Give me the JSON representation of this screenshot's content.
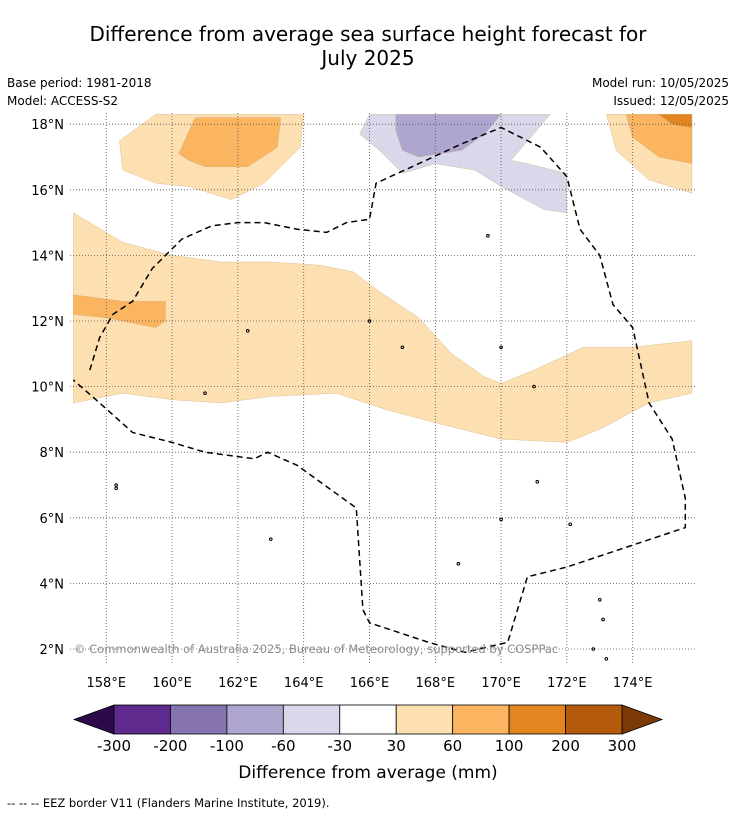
{
  "header": {
    "title_line1": "Difference from average sea surface height forecast for",
    "title_line2": "July 2025",
    "base_period": "Base period: 1981-2018",
    "model": "Model: ACCESS-S2",
    "model_run": "Model run: 10/05/2025",
    "issued": "Issued: 12/05/2025"
  },
  "footer": {
    "eez_note": "--  --  -- EEZ border V11 (Flanders Marine Institute, 2019)."
  },
  "copyright": "© Commonwealth of Australia 2025, Bureau of Meteorology, supported by COSPPac",
  "colors": {
    "c_m300_m200": "#5e2a8e",
    "c_m200_m100": "#8574b0",
    "c_m100_m60": "#afa6d0",
    "c_m60_m30": "#d9d8ea",
    "c_m30_30": "#ffffff",
    "c_30_60": "#fde0b2",
    "c_60_100": "#fbb45f",
    "c_100_200": "#e3861f",
    "c_200_300": "#b45a0c",
    "over": "#7b3908",
    "under": "#2d0a4b",
    "grid": "#555555",
    "eez": "#000000"
  },
  "chart_data": {
    "type": "heatmap",
    "title": "Difference from average sea surface height forecast for July 2025",
    "xlabel": "",
    "ylabel": "",
    "xlim": [
      157.0,
      175.8
    ],
    "ylim": [
      1.3,
      18.3
    ],
    "x_ticks": [
      {
        "value": 158,
        "label": "158°E"
      },
      {
        "value": 160,
        "label": "160°E"
      },
      {
        "value": 162,
        "label": "162°E"
      },
      {
        "value": 164,
        "label": "164°E"
      },
      {
        "value": 166,
        "label": "166°E"
      },
      {
        "value": 168,
        "label": "168°E"
      },
      {
        "value": 170,
        "label": "170°E"
      },
      {
        "value": 172,
        "label": "172°E"
      },
      {
        "value": 174,
        "label": "174°E"
      }
    ],
    "y_ticks": [
      {
        "value": 2,
        "label": "2°N"
      },
      {
        "value": 4,
        "label": "4°N"
      },
      {
        "value": 6,
        "label": "6°N"
      },
      {
        "value": 8,
        "label": "8°N"
      },
      {
        "value": 10,
        "label": "10°N"
      },
      {
        "value": 12,
        "label": "12°N"
      },
      {
        "value": 14,
        "label": "14°N"
      },
      {
        "value": 16,
        "label": "16°N"
      },
      {
        "value": 18,
        "label": "18°N"
      }
    ],
    "grid": true,
    "colorbar": {
      "label": "Difference from average (mm)",
      "boundaries": [
        "-300",
        "-200",
        "-100",
        "-60",
        "-30",
        "30",
        "60",
        "100",
        "200",
        "300"
      ],
      "extend": "both",
      "units": "mm"
    },
    "regions": [
      {
        "level": "30 to 60",
        "color_key": "c_30_60",
        "lonlat": [
          [
            157,
            15.3
          ],
          [
            158.5,
            14.4
          ],
          [
            160,
            14.0
          ],
          [
            161.5,
            13.8
          ],
          [
            163,
            13.8
          ],
          [
            164.5,
            13.7
          ],
          [
            165.5,
            13.5
          ],
          [
            166.3,
            12.9
          ],
          [
            167.5,
            12.1
          ],
          [
            168.5,
            11.0
          ],
          [
            169.5,
            10.3
          ],
          [
            170,
            10.1
          ],
          [
            171,
            10.5
          ],
          [
            172.5,
            11.2
          ],
          [
            174,
            11.2
          ],
          [
            175.8,
            11.4
          ],
          [
            175.8,
            9.8
          ],
          [
            174.5,
            9.5
          ],
          [
            173,
            8.7
          ],
          [
            172,
            8.3
          ],
          [
            170,
            8.4
          ],
          [
            168,
            8.9
          ],
          [
            166.5,
            9.3
          ],
          [
            165,
            9.8
          ],
          [
            163,
            9.7
          ],
          [
            161.5,
            9.5
          ],
          [
            160,
            9.6
          ],
          [
            158.5,
            9.8
          ],
          [
            157,
            9.5
          ]
        ]
      },
      {
        "level": "60 to 100",
        "color_key": "c_60_100",
        "lonlat": [
          [
            157,
            12.8
          ],
          [
            158.5,
            12.6
          ],
          [
            159.8,
            12.6
          ],
          [
            159.8,
            12.0
          ],
          [
            159.5,
            11.8
          ],
          [
            158,
            12.1
          ],
          [
            157,
            12.2
          ]
        ]
      },
      {
        "level": "30 to 60",
        "color_key": "c_30_60",
        "lonlat": [
          [
            158.4,
            17.5
          ],
          [
            159.5,
            18.3
          ],
          [
            164.0,
            18.3
          ],
          [
            163.9,
            17.3
          ],
          [
            162.8,
            16.2
          ],
          [
            161.8,
            15.7
          ],
          [
            160.5,
            16.1
          ],
          [
            159.5,
            16.2
          ],
          [
            158.5,
            16.6
          ]
        ]
      },
      {
        "level": "60 to 100",
        "color_key": "c_60_100",
        "lonlat": [
          [
            160.2,
            17.1
          ],
          [
            160.7,
            18.2
          ],
          [
            163.3,
            18.2
          ],
          [
            163.2,
            17.3
          ],
          [
            162.3,
            16.7
          ],
          [
            161.0,
            16.7
          ],
          [
            160.5,
            16.9
          ]
        ]
      },
      {
        "level": "-60 to -30",
        "color_key": "c_m60_m30",
        "lonlat": [
          [
            166.0,
            18.3
          ],
          [
            171.5,
            18.3
          ],
          [
            170.3,
            16.9
          ],
          [
            170.8,
            16.8
          ],
          [
            172.0,
            16.5
          ],
          [
            172.0,
            15.3
          ],
          [
            171.3,
            15.4
          ],
          [
            170.0,
            16.1
          ],
          [
            169.2,
            16.6
          ],
          [
            168.0,
            16.8
          ],
          [
            167.0,
            16.5
          ],
          [
            166.3,
            17.2
          ],
          [
            165.7,
            17.7
          ]
        ]
      },
      {
        "level": "-100 to -60",
        "color_key": "c_m100_m60",
        "lonlat": [
          [
            166.8,
            18.3
          ],
          [
            170.0,
            18.3
          ],
          [
            169.5,
            17.7
          ],
          [
            168.8,
            17.2
          ],
          [
            167.5,
            17.0
          ],
          [
            167.0,
            17.2
          ],
          [
            166.8,
            17.8
          ]
        ]
      },
      {
        "level": "30 to 60",
        "color_key": "c_30_60",
        "lonlat": [
          [
            173.2,
            18.3
          ],
          [
            175.8,
            18.3
          ],
          [
            175.8,
            15.9
          ],
          [
            174.5,
            16.3
          ],
          [
            173.5,
            17.2
          ]
        ]
      },
      {
        "level": "60 to 100",
        "color_key": "c_60_100",
        "lonlat": [
          [
            173.8,
            18.3
          ],
          [
            175.8,
            18.3
          ],
          [
            175.8,
            16.8
          ],
          [
            174.8,
            17.0
          ],
          [
            174.0,
            17.6
          ]
        ]
      },
      {
        "level": "100 to 200",
        "color_key": "c_100_200",
        "lonlat": [
          [
            174.8,
            18.3
          ],
          [
            175.8,
            18.3
          ],
          [
            175.8,
            17.9
          ],
          [
            175.2,
            18.0
          ]
        ]
      }
    ],
    "eez_border": {
      "name": "EEZ border V11",
      "lonlat": [
        [
          157.5,
          10.5
        ],
        [
          157.8,
          11.5
        ],
        [
          158.2,
          12.2
        ],
        [
          158.8,
          12.6
        ],
        [
          159.4,
          13.6
        ],
        [
          160.3,
          14.5
        ],
        [
          161.2,
          14.9
        ],
        [
          162.0,
          15.0
        ],
        [
          162.8,
          15.0
        ],
        [
          163.8,
          14.8
        ],
        [
          164.7,
          14.7
        ],
        [
          165.3,
          15.0
        ],
        [
          166.0,
          15.1
        ],
        [
          166.2,
          16.2
        ],
        [
          167.5,
          16.8
        ],
        [
          168.8,
          17.4
        ],
        [
          170.0,
          17.9
        ],
        [
          171.2,
          17.3
        ],
        [
          172.0,
          16.4
        ],
        [
          172.4,
          14.8
        ],
        [
          173.0,
          14.0
        ],
        [
          173.4,
          12.5
        ],
        [
          174.0,
          11.8
        ],
        [
          174.5,
          9.5
        ],
        [
          175.2,
          8.4
        ],
        [
          175.6,
          6.6
        ],
        [
          175.6,
          5.7
        ],
        [
          173.5,
          5.0
        ],
        [
          172.0,
          4.5
        ],
        [
          170.8,
          4.2
        ],
        [
          170.2,
          2.2
        ],
        [
          168.9,
          1.9
        ],
        [
          167.8,
          2.2
        ],
        [
          166.0,
          2.8
        ],
        [
          165.8,
          3.2
        ],
        [
          165.6,
          6.3
        ],
        [
          163.8,
          7.6
        ],
        [
          162.9,
          8.0
        ],
        [
          162.5,
          7.8
        ],
        [
          161.0,
          8.0
        ],
        [
          160.0,
          8.3
        ],
        [
          158.8,
          8.6
        ],
        [
          157.8,
          9.5
        ],
        [
          157.0,
          10.2
        ]
      ]
    },
    "coastlines": [
      [
        158.3,
        7.0
      ],
      [
        158.3,
        6.9
      ],
      [
        163.0,
        5.35
      ],
      [
        168.7,
        4.6
      ],
      [
        170.0,
        5.95
      ],
      [
        171.1,
        7.1
      ],
      [
        172.1,
        5.8
      ],
      [
        173.0,
        3.5
      ],
      [
        173.1,
        2.9
      ],
      [
        173.2,
        1.7
      ],
      [
        172.8,
        2.0
      ],
      [
        161.0,
        9.8
      ],
      [
        166.0,
        12.0
      ],
      [
        167.0,
        11.2
      ],
      [
        170.0,
        11.2
      ],
      [
        171.0,
        10.0
      ],
      [
        169.6,
        14.6
      ],
      [
        162.3,
        11.7
      ]
    ]
  }
}
